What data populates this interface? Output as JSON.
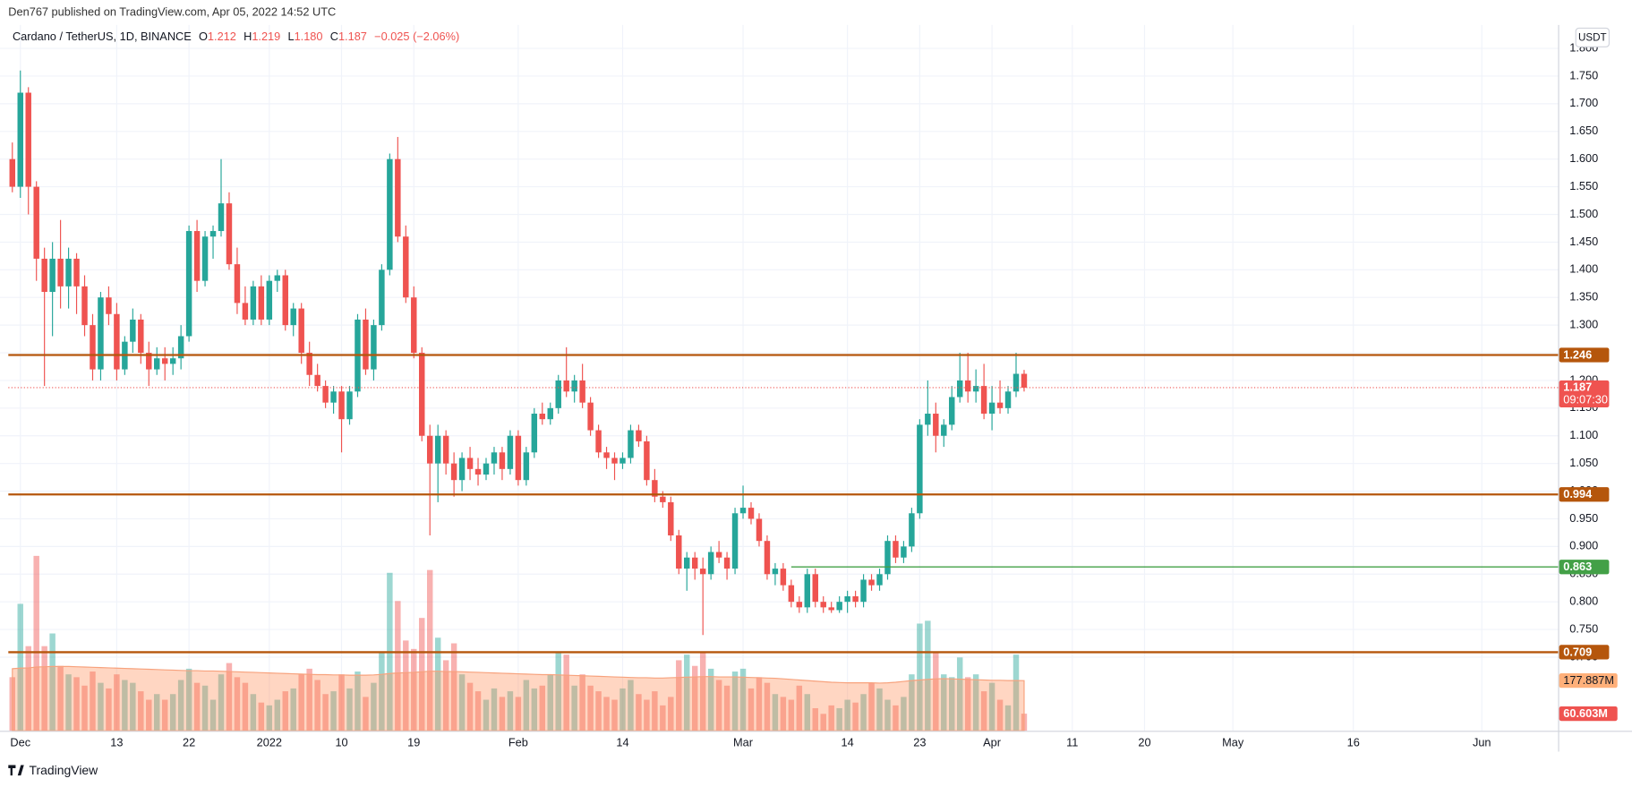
{
  "header": {
    "published": "Den767 published on TradingView.com, Apr 05, 2022 14:52 UTC",
    "brand": "TradingView"
  },
  "chart_data": {
    "type": "candlestick",
    "legend": {
      "symbol": "Cardano / TetherUS, 1D, BINANCE",
      "o_label": "O",
      "open": "1.212",
      "h_label": "H",
      "high": "1.219",
      "l_label": "L",
      "low": "1.180",
      "c_label": "C",
      "close": "1.187",
      "change": "−0.025",
      "change_pct": "(−2.06%)"
    },
    "currency": "USDT",
    "up_color": "#26a69a",
    "down_color": "#ef5350",
    "xlim": [
      -0.5,
      192.5
    ],
    "ylim": [
      0.567,
      1.831
    ],
    "volume_ylim": [
      0,
      620
    ],
    "grid": true,
    "xticks": [
      {
        "value": 1,
        "label": "Dec"
      },
      {
        "value": 13,
        "label": "13"
      },
      {
        "value": 22,
        "label": "22"
      },
      {
        "value": 32,
        "label": "2022"
      },
      {
        "value": 41,
        "label": "10"
      },
      {
        "value": 50,
        "label": "19"
      },
      {
        "value": 63,
        "label": "Feb"
      },
      {
        "value": 76,
        "label": "14"
      },
      {
        "value": 91,
        "label": "Mar"
      },
      {
        "value": 104,
        "label": "14"
      },
      {
        "value": 113,
        "label": "23"
      },
      {
        "value": 122,
        "label": "Apr"
      },
      {
        "value": 132,
        "label": "11"
      },
      {
        "value": 141,
        "label": "20"
      },
      {
        "value": 152,
        "label": "May"
      },
      {
        "value": 167,
        "label": "16"
      },
      {
        "value": 183,
        "label": "Jun"
      }
    ],
    "yticks": [
      {
        "value": 0.7,
        "label": "0.700"
      },
      {
        "value": 0.75,
        "label": "0.750"
      },
      {
        "value": 0.8,
        "label": "0.800"
      },
      {
        "value": 0.85,
        "label": "0.850"
      },
      {
        "value": 0.9,
        "label": "0.900"
      },
      {
        "value": 0.95,
        "label": "0.950"
      },
      {
        "value": 1.0,
        "label": "1.000"
      },
      {
        "value": 1.05,
        "label": "1.050"
      },
      {
        "value": 1.1,
        "label": "1.100"
      },
      {
        "value": 1.15,
        "label": "1.150"
      },
      {
        "value": 1.2,
        "label": "1.200"
      },
      {
        "value": 1.25,
        "label": "1.250"
      },
      {
        "value": 1.3,
        "label": "1.300"
      },
      {
        "value": 1.35,
        "label": "1.350"
      },
      {
        "value": 1.4,
        "label": "1.400"
      },
      {
        "value": 1.45,
        "label": "1.450"
      },
      {
        "value": 1.5,
        "label": "1.500"
      },
      {
        "value": 1.55,
        "label": "1.550"
      },
      {
        "value": 1.6,
        "label": "1.600"
      },
      {
        "value": 1.65,
        "label": "1.650"
      },
      {
        "value": 1.7,
        "label": "1.700"
      },
      {
        "value": 1.75,
        "label": "1.750"
      },
      {
        "value": 1.8,
        "label": "1.800"
      }
    ],
    "levels": [
      {
        "value": 1.246,
        "color": "#b5560c"
      },
      {
        "value": 0.994,
        "color": "#b5560c"
      },
      {
        "value": 0.863,
        "color": "#43a047",
        "from": 97
      },
      {
        "value": 0.709,
        "color": "#b5560c"
      }
    ],
    "countdown": "09:07:30",
    "candles": [
      [
        1.6,
        1.63,
        1.54,
        1.55
      ],
      [
        1.55,
        1.76,
        1.53,
        1.72
      ],
      [
        1.72,
        1.73,
        1.5,
        1.55
      ],
      [
        1.55,
        1.56,
        1.38,
        1.42
      ],
      [
        1.42,
        1.44,
        1.19,
        1.36
      ],
      [
        1.36,
        1.45,
        1.28,
        1.42
      ],
      [
        1.42,
        1.49,
        1.33,
        1.37
      ],
      [
        1.37,
        1.44,
        1.33,
        1.42
      ],
      [
        1.42,
        1.43,
        1.32,
        1.37
      ],
      [
        1.37,
        1.39,
        1.28,
        1.3
      ],
      [
        1.3,
        1.32,
        1.2,
        1.22
      ],
      [
        1.22,
        1.36,
        1.2,
        1.35
      ],
      [
        1.35,
        1.37,
        1.3,
        1.32
      ],
      [
        1.32,
        1.34,
        1.2,
        1.22
      ],
      [
        1.22,
        1.28,
        1.21,
        1.27
      ],
      [
        1.27,
        1.33,
        1.25,
        1.31
      ],
      [
        1.31,
        1.32,
        1.23,
        1.25
      ],
      [
        1.25,
        1.27,
        1.19,
        1.22
      ],
      [
        1.22,
        1.26,
        1.21,
        1.24
      ],
      [
        1.24,
        1.26,
        1.2,
        1.23
      ],
      [
        1.23,
        1.26,
        1.21,
        1.24
      ],
      [
        1.24,
        1.3,
        1.22,
        1.28
      ],
      [
        1.28,
        1.48,
        1.27,
        1.47
      ],
      [
        1.47,
        1.49,
        1.36,
        1.38
      ],
      [
        1.38,
        1.47,
        1.37,
        1.46
      ],
      [
        1.46,
        1.48,
        1.42,
        1.47
      ],
      [
        1.47,
        1.6,
        1.46,
        1.52
      ],
      [
        1.52,
        1.54,
        1.4,
        1.41
      ],
      [
        1.41,
        1.44,
        1.32,
        1.34
      ],
      [
        1.34,
        1.37,
        1.3,
        1.31
      ],
      [
        1.31,
        1.38,
        1.3,
        1.37
      ],
      [
        1.37,
        1.39,
        1.3,
        1.31
      ],
      [
        1.31,
        1.39,
        1.3,
        1.38
      ],
      [
        1.38,
        1.4,
        1.36,
        1.39
      ],
      [
        1.39,
        1.4,
        1.29,
        1.3
      ],
      [
        1.3,
        1.34,
        1.28,
        1.33
      ],
      [
        1.33,
        1.34,
        1.23,
        1.25
      ],
      [
        1.25,
        1.27,
        1.19,
        1.21
      ],
      [
        1.21,
        1.23,
        1.18,
        1.19
      ],
      [
        1.19,
        1.2,
        1.15,
        1.16
      ],
      [
        1.16,
        1.19,
        1.14,
        1.18
      ],
      [
        1.18,
        1.19,
        1.07,
        1.13
      ],
      [
        1.13,
        1.19,
        1.12,
        1.18
      ],
      [
        1.18,
        1.32,
        1.17,
        1.31
      ],
      [
        1.31,
        1.33,
        1.21,
        1.22
      ],
      [
        1.22,
        1.31,
        1.2,
        1.3
      ],
      [
        1.3,
        1.41,
        1.29,
        1.4
      ],
      [
        1.4,
        1.61,
        1.39,
        1.6
      ],
      [
        1.6,
        1.64,
        1.45,
        1.46
      ],
      [
        1.46,
        1.48,
        1.34,
        1.35
      ],
      [
        1.35,
        1.37,
        1.24,
        1.25
      ],
      [
        1.25,
        1.26,
        1.09,
        1.1
      ],
      [
        1.1,
        1.12,
        0.92,
        1.05
      ],
      [
        1.05,
        1.12,
        0.98,
        1.1
      ],
      [
        1.1,
        1.11,
        1.03,
        1.05
      ],
      [
        1.05,
        1.07,
        0.99,
        1.02
      ],
      [
        1.02,
        1.07,
        1.0,
        1.06
      ],
      [
        1.06,
        1.08,
        1.02,
        1.04
      ],
      [
        1.04,
        1.06,
        1.01,
        1.03
      ],
      [
        1.03,
        1.06,
        1.02,
        1.05
      ],
      [
        1.05,
        1.08,
        1.03,
        1.07
      ],
      [
        1.07,
        1.08,
        1.02,
        1.04
      ],
      [
        1.04,
        1.11,
        1.03,
        1.1
      ],
      [
        1.1,
        1.11,
        1.01,
        1.02
      ],
      [
        1.02,
        1.08,
        1.01,
        1.07
      ],
      [
        1.07,
        1.15,
        1.06,
        1.14
      ],
      [
        1.14,
        1.16,
        1.12,
        1.13
      ],
      [
        1.13,
        1.16,
        1.12,
        1.15
      ],
      [
        1.15,
        1.21,
        1.14,
        1.2
      ],
      [
        1.2,
        1.26,
        1.17,
        1.18
      ],
      [
        1.18,
        1.21,
        1.16,
        1.2
      ],
      [
        1.2,
        1.23,
        1.15,
        1.16
      ],
      [
        1.16,
        1.17,
        1.1,
        1.11
      ],
      [
        1.11,
        1.12,
        1.06,
        1.07
      ],
      [
        1.07,
        1.08,
        1.04,
        1.06
      ],
      [
        1.06,
        1.07,
        1.02,
        1.05
      ],
      [
        1.05,
        1.07,
        1.04,
        1.06
      ],
      [
        1.06,
        1.12,
        1.05,
        1.11
      ],
      [
        1.11,
        1.12,
        1.08,
        1.09
      ],
      [
        1.09,
        1.1,
        1.01,
        1.02
      ],
      [
        1.02,
        1.04,
        0.98,
        0.99
      ],
      [
        0.99,
        1.0,
        0.97,
        0.98
      ],
      [
        0.98,
        0.99,
        0.91,
        0.92
      ],
      [
        0.92,
        0.93,
        0.85,
        0.86
      ],
      [
        0.86,
        0.89,
        0.82,
        0.88
      ],
      [
        0.88,
        0.89,
        0.84,
        0.86
      ],
      [
        0.86,
        0.88,
        0.74,
        0.85
      ],
      [
        0.85,
        0.9,
        0.84,
        0.89
      ],
      [
        0.89,
        0.91,
        0.87,
        0.88
      ],
      [
        0.88,
        0.89,
        0.84,
        0.86
      ],
      [
        0.86,
        0.97,
        0.85,
        0.96
      ],
      [
        0.96,
        1.01,
        0.95,
        0.97
      ],
      [
        0.97,
        0.98,
        0.94,
        0.95
      ],
      [
        0.95,
        0.96,
        0.9,
        0.91
      ],
      [
        0.91,
        0.92,
        0.84,
        0.85
      ],
      [
        0.85,
        0.87,
        0.83,
        0.86
      ],
      [
        0.86,
        0.87,
        0.82,
        0.83
      ],
      [
        0.83,
        0.84,
        0.79,
        0.8
      ],
      [
        0.8,
        0.81,
        0.78,
        0.79
      ],
      [
        0.79,
        0.86,
        0.78,
        0.85
      ],
      [
        0.85,
        0.86,
        0.79,
        0.8
      ],
      [
        0.8,
        0.81,
        0.78,
        0.79
      ],
      [
        0.79,
        0.8,
        0.78,
        0.785
      ],
      [
        0.785,
        0.81,
        0.78,
        0.8
      ],
      [
        0.8,
        0.82,
        0.78,
        0.81
      ],
      [
        0.81,
        0.82,
        0.79,
        0.8
      ],
      [
        0.8,
        0.85,
        0.79,
        0.84
      ],
      [
        0.84,
        0.85,
        0.82,
        0.83
      ],
      [
        0.83,
        0.86,
        0.82,
        0.85
      ],
      [
        0.85,
        0.92,
        0.84,
        0.91
      ],
      [
        0.91,
        0.92,
        0.87,
        0.88
      ],
      [
        0.88,
        0.91,
        0.87,
        0.9
      ],
      [
        0.9,
        0.97,
        0.89,
        0.96
      ],
      [
        0.96,
        1.13,
        0.95,
        1.12
      ],
      [
        1.12,
        1.2,
        1.1,
        1.14
      ],
      [
        1.14,
        1.16,
        1.07,
        1.1
      ],
      [
        1.1,
        1.13,
        1.08,
        1.12
      ],
      [
        1.12,
        1.19,
        1.11,
        1.17
      ],
      [
        1.17,
        1.25,
        1.16,
        1.2
      ],
      [
        1.2,
        1.25,
        1.16,
        1.18
      ],
      [
        1.18,
        1.22,
        1.16,
        1.19
      ],
      [
        1.19,
        1.23,
        1.13,
        1.14
      ],
      [
        1.14,
        1.19,
        1.11,
        1.16
      ],
      [
        1.16,
        1.2,
        1.14,
        1.15
      ],
      [
        1.15,
        1.19,
        1.14,
        1.18
      ],
      [
        1.18,
        1.25,
        1.17,
        1.212
      ],
      [
        1.212,
        1.219,
        1.18,
        1.187
      ]
    ],
    "volume": [
      190,
      450,
      300,
      620,
      300,
      345,
      230,
      200,
      190,
      160,
      210,
      170,
      150,
      200,
      180,
      170,
      140,
      110,
      130,
      110,
      130,
      180,
      220,
      170,
      160,
      110,
      200,
      240,
      190,
      170,
      130,
      100,
      90,
      110,
      140,
      150,
      200,
      220,
      180,
      130,
      140,
      200,
      150,
      210,
      120,
      170,
      280,
      560,
      460,
      320,
      290,
      400,
      570,
      330,
      250,
      310,
      200,
      170,
      140,
      110,
      150,
      120,
      140,
      120,
      180,
      150,
      160,
      200,
      280,
      270,
      160,
      200,
      160,
      140,
      120,
      110,
      150,
      180,
      130,
      110,
      140,
      90,
      120,
      250,
      270,
      230,
      280,
      220,
      180,
      160,
      210,
      220,
      150,
      190,
      170,
      130,
      120,
      110,
      160,
      130,
      80,
      60,
      90,
      80,
      110,
      100,
      130,
      170,
      150,
      110,
      90,
      120,
      200,
      380,
      390,
      280,
      200,
      190,
      260,
      190,
      200,
      140,
      170,
      110,
      90,
      270,
      60.603
    ],
    "volume_ma": [
      220,
      222,
      223,
      226,
      227,
      228,
      228,
      228,
      227,
      226,
      225,
      224,
      223,
      222,
      221,
      220,
      219,
      218,
      217,
      216,
      215,
      214,
      213,
      213,
      212,
      212,
      211,
      210,
      209,
      208,
      207,
      206,
      205,
      204,
      203,
      202,
      201,
      200,
      199,
      199,
      198,
      198,
      197,
      197,
      197,
      198,
      200,
      203,
      205,
      206,
      207,
      209,
      211,
      211,
      210,
      210,
      209,
      208,
      207,
      206,
      205,
      204,
      203,
      202,
      201,
      200,
      199,
      199,
      198,
      197,
      196,
      195,
      194,
      193,
      192,
      191,
      190,
      189,
      188,
      188,
      187,
      187,
      188,
      189,
      190,
      191,
      192,
      192,
      191,
      191,
      191,
      190,
      189,
      188,
      187,
      186,
      184,
      182,
      180,
      178,
      176,
      174,
      172,
      171,
      170,
      170,
      170,
      170,
      169,
      170,
      172,
      175,
      178,
      180,
      182,
      184,
      185,
      184,
      183,
      182,
      181,
      180,
      179,
      179,
      178,
      178,
      177.887
    ],
    "volume_label": "60.603M",
    "volume_ma_label": "177.887M"
  }
}
